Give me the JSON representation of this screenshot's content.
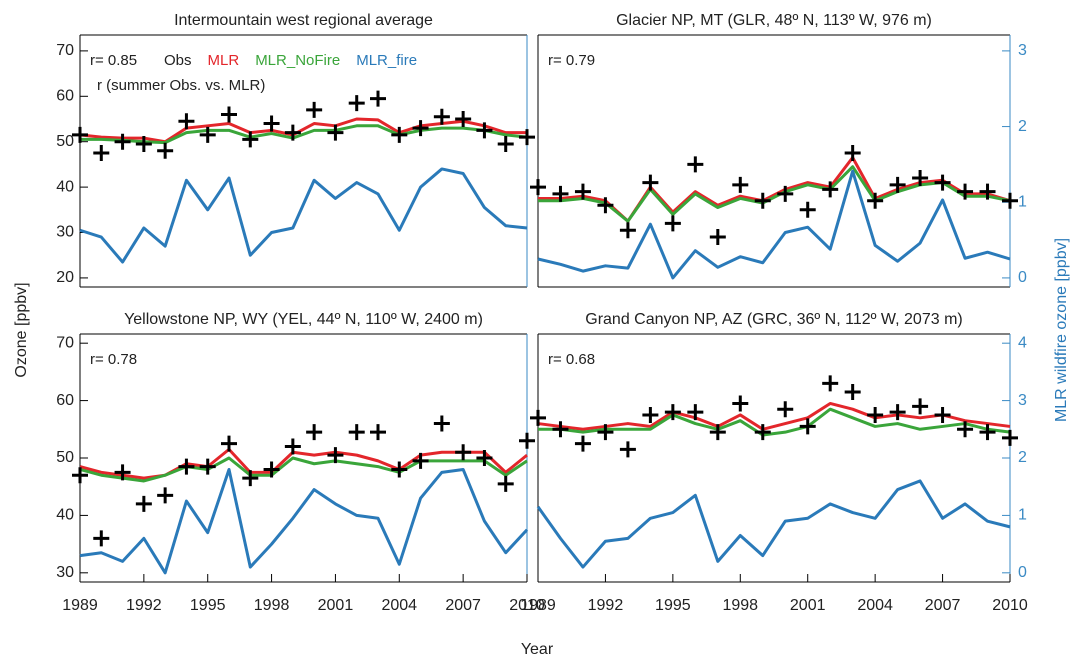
{
  "y_label": "Ozone [ppbv]",
  "y2_label": "MLR wildfire ozone [ppbv]",
  "x_label": "Year",
  "chart_data": [
    {
      "type": "line",
      "title": "Intermountain west regional average",
      "annotation": "r= 0.85",
      "note": "r (summer Obs. vs. MLR)",
      "x": [
        1989,
        1990,
        1991,
        1992,
        1993,
        1994,
        1995,
        1996,
        1997,
        1998,
        1999,
        2000,
        2001,
        2002,
        2003,
        2004,
        2005,
        2006,
        2007,
        2008,
        2009,
        2010
      ],
      "xlim": [
        1989,
        2010
      ],
      "ylim": [
        18,
        73.5
      ],
      "y2lim": [
        -0.12,
        3.21
      ],
      "yticks": [
        20,
        30,
        40,
        50,
        60,
        70
      ],
      "series": [
        {
          "name": "Obs",
          "color": "#000000",
          "marker": "+",
          "values": [
            51.5,
            47.5,
            50,
            49.5,
            48,
            54.5,
            51.5,
            56,
            50.5,
            54,
            52,
            57,
            52,
            58.5,
            59.5,
            51.5,
            53,
            55.5,
            55,
            52.5,
            49.5,
            51
          ]
        },
        {
          "name": "MLR",
          "color": "#e3262b",
          "values": [
            51.5,
            51,
            50.8,
            50.8,
            50,
            53,
            53.5,
            54,
            52,
            52.5,
            51.5,
            54,
            53.5,
            55,
            54.8,
            52,
            53.5,
            54,
            54.5,
            53.5,
            52,
            52
          ]
        },
        {
          "name": "MLR_NoFire",
          "color": "#3aa53a",
          "values": [
            50.5,
            50.5,
            50.3,
            50,
            49.8,
            52,
            52.5,
            52.5,
            51,
            51.8,
            50.8,
            52.5,
            52.5,
            53.5,
            53.5,
            51.5,
            52.5,
            53,
            53,
            52.5,
            51.5,
            51
          ]
        },
        {
          "name": "MLR_fire",
          "color": "#2a7ab9",
          "axis": "y2",
          "values": [
            0.63,
            0.54,
            0.21,
            0.66,
            0.42,
            1.29,
            0.9,
            1.32,
            0.3,
            0.6,
            0.66,
            1.29,
            1.05,
            1.26,
            1.11,
            0.63,
            1.2,
            1.44,
            1.38,
            0.93,
            0.69,
            0.66
          ]
        }
      ]
    },
    {
      "type": "line",
      "title": "Glacier NP, MT (GLR, 48º N, 113º W, 976 m)",
      "annotation": "r= 0.79",
      "x": [
        1989,
        1990,
        1991,
        1992,
        1993,
        1994,
        1995,
        1996,
        1997,
        1998,
        1999,
        2000,
        2001,
        2002,
        2003,
        2004,
        2005,
        2006,
        2007,
        2008,
        2009,
        2010
      ],
      "xlim": [
        1989,
        2010
      ],
      "ylim": [
        18,
        73.5
      ],
      "y2lim": [
        -0.12,
        3.21
      ],
      "y2ticks": [
        0,
        1,
        2,
        3
      ],
      "series": [
        {
          "color": "#000000",
          "marker": "+",
          "values": [
            40,
            38.5,
            39,
            36,
            30.5,
            41,
            32,
            45,
            29,
            40.5,
            37,
            38.5,
            35,
            39.5,
            47.5,
            37,
            40.5,
            42,
            41,
            39,
            39,
            37
          ]
        },
        {
          "color": "#e3262b",
          "values": [
            37.5,
            37.5,
            38,
            37,
            32.5,
            40,
            34.5,
            39,
            36,
            38,
            37,
            39.5,
            41,
            40,
            46.5,
            37.5,
            39.5,
            41,
            41.5,
            38.5,
            38.5,
            37
          ]
        },
        {
          "color": "#3aa53a",
          "values": [
            37,
            37,
            37.5,
            36.5,
            32.5,
            39.5,
            34,
            38.5,
            35.5,
            37.5,
            36.5,
            39,
            40.5,
            39.5,
            44.5,
            37,
            39,
            40.5,
            41,
            38,
            38,
            37
          ]
        },
        {
          "color": "#2a7ab9",
          "axis": "y2",
          "values": [
            0.25,
            0.18,
            0.09,
            0.16,
            0.13,
            0.71,
            0,
            0.36,
            0.14,
            0.28,
            0.2,
            0.6,
            0.67,
            0.38,
            1.41,
            0.43,
            0.22,
            0.46,
            1.03,
            0.26,
            0.34,
            0.25
          ]
        }
      ]
    },
    {
      "type": "line",
      "title": "Yellowstone NP, WY (YEL, 44º N, 110º W, 2400 m)",
      "annotation": "r= 0.78",
      "x": [
        1989,
        1990,
        1991,
        1992,
        1993,
        1994,
        1995,
        1996,
        1997,
        1998,
        1999,
        2000,
        2001,
        2002,
        2003,
        2004,
        2005,
        2006,
        2007,
        2008,
        2009,
        2010
      ],
      "xlim": [
        1989,
        2010
      ],
      "ylim": [
        28.4,
        71.6
      ],
      "y2lim": [
        -0.16,
        4.16
      ],
      "yticks": [
        30,
        40,
        50,
        60,
        70
      ],
      "xticks": [
        1989,
        1992,
        1995,
        1998,
        2001,
        2004,
        2007,
        2010
      ],
      "series": [
        {
          "color": "#000000",
          "marker": "+",
          "values": [
            47,
            36,
            47.5,
            42,
            43.5,
            48.5,
            48.5,
            52.5,
            46.5,
            48,
            52,
            54.5,
            50.5,
            54.5,
            54.5,
            48,
            49.5,
            56,
            51,
            50,
            45.5,
            53
          ]
        },
        {
          "color": "#e3262b",
          "values": [
            48.5,
            47.5,
            47,
            46.5,
            47,
            49,
            48.5,
            51.5,
            47.5,
            47.5,
            51,
            50.5,
            51,
            50.5,
            49.5,
            48,
            50.5,
            51,
            51,
            51,
            47.5,
            50.5
          ]
        },
        {
          "color": "#3aa53a",
          "values": [
            48,
            47,
            46.5,
            46,
            47,
            48.5,
            48,
            50,
            47,
            47,
            50,
            49,
            49.5,
            49,
            48.5,
            47.5,
            49.5,
            49.5,
            49.5,
            49.5,
            47,
            49.5
          ]
        },
        {
          "color": "#2a7ab9",
          "axis": "y2",
          "values": [
            0.3,
            0.35,
            0.2,
            0.6,
            0,
            1.25,
            0.7,
            1.8,
            0.1,
            0.5,
            0.95,
            1.45,
            1.2,
            1,
            0.95,
            0.15,
            1.3,
            1.75,
            1.8,
            0.9,
            0.35,
            0.75
          ]
        }
      ]
    },
    {
      "type": "line",
      "title": "Grand Canyon NP, AZ (GRC, 36º N, 112º W, 2073 m)",
      "annotation": "r= 0.68",
      "x": [
        1989,
        1990,
        1991,
        1992,
        1993,
        1994,
        1995,
        1996,
        1997,
        1998,
        1999,
        2000,
        2001,
        2002,
        2003,
        2004,
        2005,
        2006,
        2007,
        2008,
        2009,
        2010
      ],
      "xlim": [
        1989,
        2010
      ],
      "ylim": [
        28.4,
        71.6
      ],
      "y2lim": [
        -0.16,
        4.16
      ],
      "y2ticks": [
        0,
        1,
        2,
        3,
        4
      ],
      "xticks": [
        1989,
        1992,
        1995,
        1998,
        2001,
        2004,
        2007,
        2010
      ],
      "series": [
        {
          "color": "#000000",
          "marker": "+",
          "values": [
            57,
            55,
            52.5,
            54.5,
            51.5,
            57.5,
            58,
            58,
            54.5,
            59.5,
            54.5,
            58.5,
            55.5,
            63,
            61.5,
            57.5,
            58,
            59,
            57.5,
            55,
            54.5,
            53.5
          ]
        },
        {
          "color": "#e3262b",
          "values": [
            56,
            55.5,
            55,
            55.5,
            56,
            55.5,
            58,
            57,
            55.5,
            57.5,
            55,
            56,
            57,
            59.5,
            58.5,
            57,
            57.5,
            57,
            57.5,
            56.5,
            56,
            55.5
          ]
        },
        {
          "color": "#3aa53a",
          "values": [
            55,
            55,
            54.5,
            55,
            55,
            55,
            57.5,
            56,
            55,
            56.5,
            54,
            54.5,
            55.5,
            58.5,
            57,
            55.5,
            56,
            55,
            55.5,
            56,
            55,
            54.5
          ]
        },
        {
          "color": "#2a7ab9",
          "axis": "y2",
          "values": [
            1.15,
            0.6,
            0.1,
            0.55,
            0.6,
            0.95,
            1.05,
            1.35,
            0.2,
            0.65,
            0.3,
            0.9,
            0.95,
            1.2,
            1.05,
            0.95,
            1.45,
            1.6,
            0.95,
            1.2,
            0.9,
            0.8
          ]
        }
      ]
    }
  ]
}
